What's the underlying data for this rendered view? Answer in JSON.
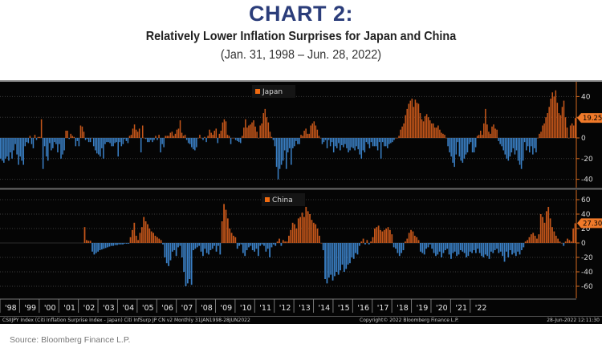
{
  "header": {
    "chart_number": "CHART 2:",
    "subtitle": "Relatively Lower Inflation Surprises for Japan and China",
    "date_range": "(Jan. 31, 1998 – Jun. 28, 2022)"
  },
  "footer": {
    "index_desc": "CSIIJPY Index (Citi Inflation Surprise Index - Japan) Citi InfSurp JP CN v2  Monthly 31JAN1998-28JUN2022",
    "copyright": "Copyright© 2022 Bloomberg Finance L.P.",
    "timestamp": "28-Jun-2022 12:11:30",
    "source": "Source: Bloomberg Finance L.P."
  },
  "colors": {
    "positive": "#c4561a",
    "negative": "#3a7fc4",
    "axis": "#d2691e",
    "title": "#2b3d7a",
    "background": "#050505",
    "last_value_tag": "#f07a2a"
  },
  "chart_data": [
    {
      "type": "bar",
      "title": "Japan",
      "legend": "Japan",
      "legend_position": "top-center",
      "xlabel": "",
      "ylabel": "",
      "ylim": [
        -50,
        50
      ],
      "yticks": [
        40,
        20,
        0,
        -20,
        -40
      ],
      "last_value": "19.25",
      "x_start": "1998-01",
      "frequency": "monthly",
      "xtick_labels": [
        "'98",
        "'99",
        "'00",
        "'01",
        "'02",
        "'03",
        "'04",
        "'05",
        "'06",
        "'07",
        "'08",
        "'09",
        "'10",
        "'11",
        "'12",
        "'13",
        "'14",
        "'15",
        "'16",
        "'17",
        "'18",
        "'19",
        "'20",
        "'21",
        "'22"
      ],
      "values": [
        -20,
        -22,
        -24,
        -20,
        -18,
        -22,
        -14,
        -20,
        -12,
        -6,
        -16,
        -26,
        -18,
        -22,
        -26,
        -8,
        -4,
        -5,
        2,
        -6,
        -10,
        3,
        -2,
        1,
        1,
        18,
        -30,
        -8,
        -18,
        -22,
        -5,
        -12,
        -10,
        -4,
        -6,
        -14,
        -6,
        -20,
        -16,
        -12,
        7,
        7,
        -1,
        4,
        2,
        1,
        -8,
        -3,
        -8,
        12,
        11,
        6,
        -2,
        -1,
        -4,
        -4,
        0,
        -8,
        -12,
        -15,
        -16,
        -18,
        -10,
        -20,
        -6,
        -4,
        -4,
        -5,
        -8,
        -8,
        -5,
        -4,
        -18,
        -4,
        -8,
        -6,
        -1,
        -3,
        -5,
        2,
        3,
        9,
        13,
        8,
        6,
        9,
        -14,
        12,
        0,
        -1,
        -4,
        -4,
        -2,
        -4,
        -2,
        2,
        -2,
        3,
        -14,
        -6,
        -9,
        2,
        2,
        2,
        5,
        6,
        2,
        4,
        8,
        9,
        17,
        5,
        2,
        3,
        -2,
        -5,
        -6,
        -9,
        -11,
        -12,
        -9,
        0,
        3,
        0,
        -2,
        1,
        -4,
        2,
        8,
        5,
        3,
        7,
        9,
        -5,
        4,
        7,
        15,
        18,
        16,
        3,
        2,
        -6,
        0,
        0,
        -2,
        -3,
        -4,
        -5,
        2,
        10,
        18,
        10,
        12,
        13,
        15,
        17,
        11,
        6,
        0,
        12,
        14,
        24,
        28,
        20,
        15,
        6,
        1,
        -2,
        -8,
        -28,
        -40,
        -30,
        -26,
        -22,
        -12,
        -30,
        -14,
        -10,
        -26,
        -10,
        -8,
        -3,
        -6,
        -6,
        3,
        2,
        7,
        9,
        4,
        4,
        12,
        14,
        16,
        12,
        8,
        2,
        0,
        -6,
        -4,
        -2,
        -10,
        -2,
        -8,
        -4,
        -14,
        -8,
        -10,
        -5,
        -12,
        -7,
        -9,
        -6,
        -10,
        -14,
        -12,
        -9,
        -10,
        -12,
        -8,
        -11,
        -16,
        -20,
        -12,
        -14,
        -4,
        -6,
        -10,
        -4,
        -8,
        -8,
        -8,
        -12,
        -4,
        -20,
        -4,
        -8,
        -8,
        -10,
        -6,
        -5,
        -4,
        -2,
        0,
        0,
        2,
        8,
        11,
        14,
        22,
        28,
        33,
        36,
        38,
        30,
        37,
        34,
        33,
        24,
        18,
        16,
        21,
        23,
        20,
        17,
        14,
        14,
        10,
        10,
        12,
        8,
        5,
        4,
        3,
        0,
        -8,
        -14,
        -18,
        -24,
        -28,
        -16,
        -4,
        -18,
        -22,
        -24,
        -20,
        -16,
        -14,
        -6,
        -4,
        -14,
        -14,
        -9,
        2,
        3,
        7,
        3,
        14,
        28,
        13,
        6,
        4,
        11,
        13,
        9,
        8,
        -3,
        -6,
        -8,
        -12,
        -16,
        -20,
        -22,
        -18,
        -14,
        -10,
        -16,
        -12,
        -22,
        -26,
        -30,
        -22,
        -4,
        -12,
        -8,
        -14,
        -8,
        -16,
        -10,
        -14,
        0,
        4,
        6,
        12,
        14,
        20,
        24,
        30,
        38,
        44,
        40,
        46,
        34,
        24,
        22,
        30,
        36,
        20,
        10,
        0,
        12,
        14,
        12,
        19.25
      ]
    },
    {
      "type": "bar",
      "title": "China",
      "legend": "China",
      "legend_position": "top-center",
      "xlabel": "",
      "ylabel": "",
      "ylim": [
        -70,
        70
      ],
      "yticks": [
        60,
        40,
        20,
        0,
        -20,
        -40,
        -60
      ],
      "last_value": "27.30",
      "x_start": "1998-01",
      "frequency": "monthly",
      "xtick_labels": [
        "'98",
        "'99",
        "'00",
        "'01",
        "'02",
        "'03",
        "'04",
        "'05",
        "'06",
        "'07",
        "'08",
        "'09",
        "'10",
        "'11",
        "'12",
        "'13",
        "'14",
        "'15",
        "'16",
        "'17",
        "'18",
        "'19",
        "'20",
        "'21",
        "'22"
      ],
      "values": [
        null,
        null,
        null,
        null,
        null,
        null,
        null,
        null,
        null,
        null,
        null,
        null,
        null,
        null,
        null,
        null,
        null,
        null,
        null,
        null,
        null,
        null,
        null,
        null,
        null,
        null,
        null,
        null,
        null,
        null,
        null,
        null,
        null,
        null,
        null,
        null,
        null,
        null,
        null,
        null,
        null,
        null,
        null,
        null,
        null,
        null,
        null,
        null,
        null,
        null,
        null,
        null,
        null,
        null,
        null,
        null,
        null,
        null,
        null,
        null,
        null,
        null,
        null,
        null,
        null,
        null,
        null,
        null,
        null,
        null,
        null,
        null,
        null,
        null,
        null,
        null,
        null,
        null,
        null,
        null,
        null,
        null,
        null,
        null,
        null,
        null,
        null,
        null,
        null,
        null,
        null,
        null,
        null,
        null,
        null,
        null,
        null,
        null,
        null,
        null,
        null,
        null,
        null,
        null,
        null,
        null,
        null,
        null,
        null,
        null,
        null,
        null,
        null,
        null,
        null,
        null,
        null,
        null,
        null,
        null,
        null,
        null,
        null,
        null,
        null,
        null,
        null,
        null,
        null,
        null,
        null,
        null,
        null,
        null,
        null,
        null,
        null,
        null,
        null,
        null,
        null,
        null,
        null,
        null,
        null,
        null,
        null,
        null,
        null,
        null,
        null,
        null,
        null,
        null,
        null,
        null,
        null,
        null,
        null,
        null,
        null,
        null,
        null,
        null,
        null,
        null,
        null,
        null,
        null,
        null,
        null,
        null,
        null,
        null,
        null,
        null,
        null,
        null,
        null,
        null,
        null,
        null,
        null,
        null,
        null,
        null,
        null,
        null,
        null,
        null,
        null,
        null,
        null,
        null,
        null,
        null,
        null,
        null,
        null,
        null,
        null,
        null,
        null,
        null,
        null,
        null,
        null,
        null,
        null,
        null,
        null,
        null,
        null,
        null,
        null,
        null,
        null,
        null,
        null,
        null,
        null,
        null,
        null,
        null,
        null,
        null,
        null,
        null,
        null,
        null,
        null,
        null,
        null,
        null,
        null,
        null,
        null,
        null,
        null,
        null,
        null,
        null,
        null,
        null,
        null,
        null,
        null,
        null,
        null,
        null,
        null,
        null,
        null,
        null,
        null,
        null,
        null,
        null,
        null,
        null,
        null,
        null,
        null,
        null,
        null,
        null,
        null,
        null,
        null,
        null,
        null,
        null,
        null,
        null,
        null,
        null,
        null,
        null,
        null,
        null,
        null,
        null,
        null,
        null,
        null,
        null,
        null,
        null,
        null,
        null,
        null,
        null,
        null,
        null,
        null,
        null,
        null,
        null,
        null,
        null,
        null,
        null
      ]
    }
  ]
}
